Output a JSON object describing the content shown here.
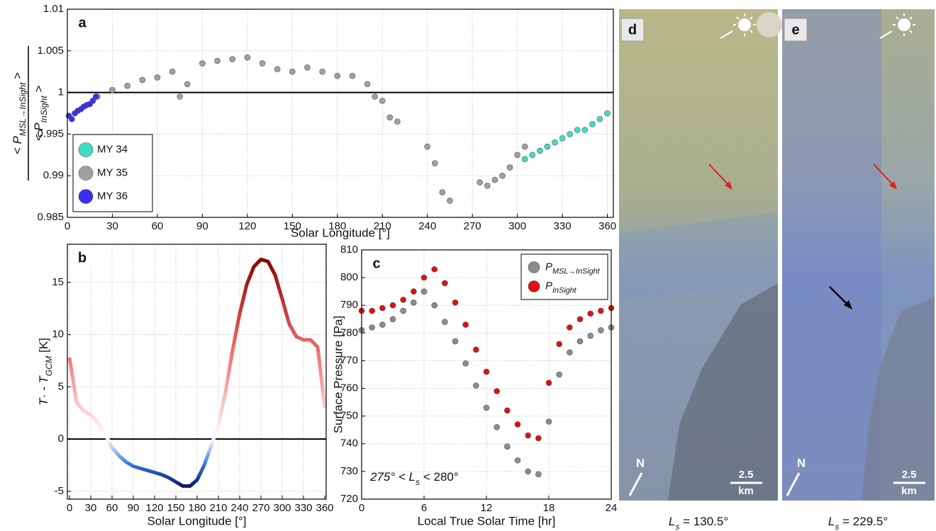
{
  "chart_data": [
    {
      "type": "scatter",
      "panel_label": "a",
      "xlabel": "Solar Longitude [°]",
      "ylabel": {
        "numerator": {
          "main": "< P",
          "sub": "MSL→InSight",
          "tail": " >"
        },
        "denominator": {
          "main": "< P",
          "sub": "InSight",
          "tail": " >"
        }
      },
      "xlim": [
        0,
        364
      ],
      "xticks": [
        0,
        30,
        60,
        90,
        120,
        150,
        180,
        210,
        240,
        270,
        300,
        330,
        360
      ],
      "ylim": [
        0.985,
        1.01
      ],
      "yticks": [
        0.985,
        0.99,
        0.995,
        1,
        1.005,
        1.01
      ],
      "grid": true,
      "hline": 1,
      "legend": "lower left",
      "series": [
        {
          "name": "MY 34",
          "color": "#3de0c0",
          "x": [
            305,
            310,
            315,
            320,
            325,
            330,
            335,
            340,
            345,
            350,
            355,
            360
          ],
          "values": [
            0.992,
            0.9925,
            0.993,
            0.9935,
            0.994,
            0.9945,
            0.995,
            0.9955,
            0.9955,
            0.9962,
            0.9968,
            0.9975
          ]
        },
        {
          "name": "MY 35",
          "color": "#a0a0a0",
          "x": [
            20,
            30,
            40,
            50,
            60,
            70,
            75,
            80,
            90,
            100,
            110,
            120,
            130,
            140,
            150,
            160,
            170,
            180,
            190,
            200,
            205,
            210,
            215,
            220,
            240,
            245,
            250,
            255,
            275,
            280,
            285,
            290,
            295,
            300,
            305
          ],
          "values": [
            0.9995,
            1.0003,
            1.0008,
            1.0015,
            1.0018,
            1.0025,
            0.9995,
            1.001,
            1.0035,
            1.0038,
            1.004,
            1.0042,
            1.0035,
            1.0028,
            1.0025,
            1.003,
            1.0025,
            1.002,
            1.002,
            1.001,
            0.9995,
            0.999,
            0.997,
            0.9965,
            0.9935,
            0.9915,
            0.988,
            0.987,
            0.9892,
            0.9888,
            0.9895,
            0.99,
            0.991,
            0.9925,
            0.9935
          ]
        },
        {
          "name": "MY 36",
          "color": "#3a2ff0",
          "x": [
            1,
            3,
            5,
            7,
            9,
            11,
            13,
            15,
            17,
            19
          ],
          "values": [
            0.9972,
            0.9968,
            0.9975,
            0.9978,
            0.998,
            0.9983,
            0.9985,
            0.9986,
            0.999,
            0.9995
          ]
        }
      ]
    },
    {
      "type": "line",
      "panel_label": "b",
      "xlabel": "Solar Longitude [°]",
      "ylabel": {
        "main": "T· - T",
        "sub": "GCM",
        "tail": " [K]"
      },
      "xlim": [
        -3,
        362
      ],
      "xticks": [
        0,
        30,
        60,
        90,
        120,
        150,
        180,
        210,
        240,
        270,
        300,
        330,
        360
      ],
      "ylim": [
        -5.75,
        18.65
      ],
      "yticks": [
        -5,
        0,
        5,
        10,
        15
      ],
      "grid": true,
      "hline": 0,
      "colors": [
        "#0a1a6b",
        "#3a80e0",
        "#ffffff",
        "#f06a6a",
        "#8b0000"
      ],
      "x": [
        0,
        10,
        20,
        30,
        40,
        50,
        60,
        70,
        80,
        90,
        100,
        110,
        120,
        130,
        140,
        150,
        160,
        170,
        180,
        190,
        200,
        210,
        220,
        230,
        240,
        250,
        260,
        270,
        280,
        290,
        300,
        310,
        320,
        330,
        340,
        350,
        360
      ],
      "values": [
        7.8,
        3.5,
        2.7,
        2.3,
        1.6,
        0.5,
        -0.8,
        -1.6,
        -2.2,
        -2.6,
        -2.8,
        -3.0,
        -3.2,
        -3.4,
        -3.7,
        -4.1,
        -4.5,
        -4.5,
        -3.9,
        -2.5,
        -0.6,
        1.3,
        4.5,
        8.5,
        12.0,
        14.8,
        16.5,
        17.2,
        17.0,
        15.7,
        13.4,
        11.0,
        9.8,
        9.5,
        9.5,
        8.8,
        3.0
      ]
    },
    {
      "type": "scatter",
      "panel_label": "c",
      "xlabel": "Local True Solar Time [hr]",
      "ylabel": "Surface Pressure [Pa]",
      "annotation": {
        "main": "275° < L",
        "sub": "s",
        "tail": " < 280°"
      },
      "xlim": [
        0,
        24
      ],
      "xticks": [
        0,
        6,
        12,
        18,
        24
      ],
      "ylim": [
        720,
        810
      ],
      "yticks": [
        720,
        730,
        740,
        750,
        760,
        770,
        780,
        790,
        800,
        810
      ],
      "grid": true,
      "legend": "upper right",
      "series": [
        {
          "name": {
            "main": "P",
            "sub": "MSL→InSight"
          },
          "color": "#8c8c8c",
          "x": [
            0,
            1,
            2,
            3,
            4,
            5,
            6,
            7,
            8,
            9,
            10,
            11,
            12,
            13,
            14,
            15,
            16,
            17,
            18,
            19,
            20,
            21,
            22,
            23,
            24
          ],
          "values": [
            781,
            782,
            783,
            785,
            788,
            791,
            795,
            790,
            784,
            777,
            769,
            761,
            753,
            746,
            739,
            734,
            730,
            729,
            748,
            765,
            773,
            777,
            779,
            781,
            782
          ]
        },
        {
          "name": {
            "main": "P",
            "sub": "InSight"
          },
          "color": "#e01010",
          "x": [
            0,
            1,
            2,
            3,
            4,
            5,
            6,
            7,
            8,
            9,
            10,
            11,
            12,
            13,
            14,
            15,
            16,
            17,
            18,
            19,
            20,
            21,
            22,
            23,
            24
          ],
          "values": [
            788,
            788,
            789,
            790,
            792,
            795,
            800,
            803,
            798,
            791,
            783,
            774,
            766,
            759,
            752,
            747,
            743,
            742,
            762,
            776,
            782,
            785,
            787,
            788,
            789
          ]
        }
      ]
    }
  ],
  "image_panels": [
    {
      "label": "d",
      "north": "N",
      "scale_value": "2.5",
      "scale_unit": "km",
      "caption": {
        "main": "L",
        "sub": "s",
        "tail": " = 130.5°"
      }
    },
    {
      "label": "e",
      "north": "N",
      "scale_value": "2.5",
      "scale_unit": "km",
      "caption": {
        "main": "L",
        "sub": "s",
        "tail": " = 229.5°"
      }
    }
  ]
}
